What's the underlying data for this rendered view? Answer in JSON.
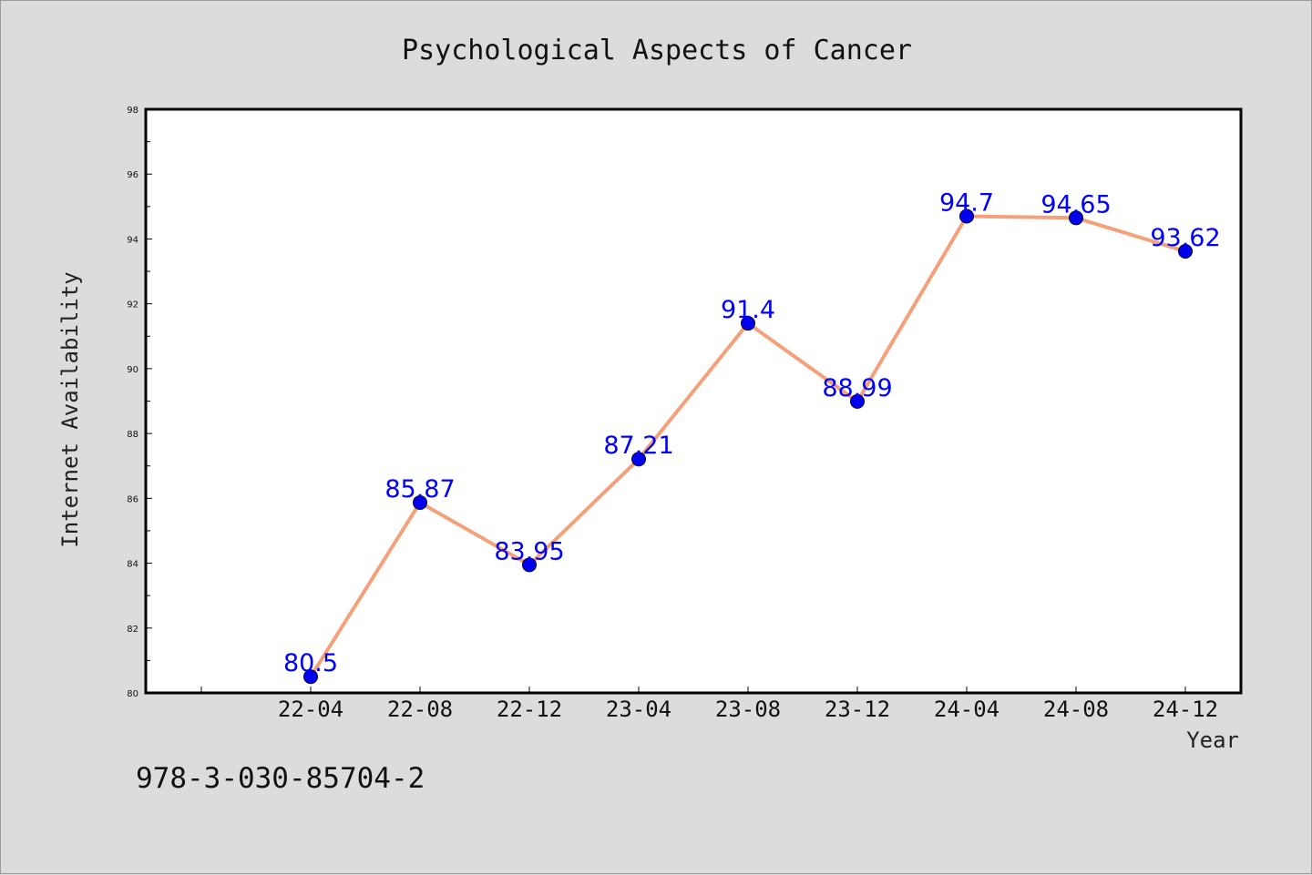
{
  "page": {
    "footnote": "978-3-030-85704-2"
  },
  "chart_data": {
    "type": "line",
    "title": "Psychological Aspects of Cancer",
    "xlabel": "Year",
    "ylabel": "Internet Availability",
    "categories": [
      "22-04",
      "22-08",
      "22-12",
      "23-04",
      "23-08",
      "23-12",
      "24-04",
      "24-08",
      "24-12"
    ],
    "series": [
      {
        "values": [
          80.5,
          85.87,
          83.95,
          87.21,
          91.4,
          88.99,
          94.7,
          94.65,
          93.62
        ],
        "labels": [
          "80.5",
          "85.87",
          "83.95",
          "87.21",
          "91.4",
          "88.99",
          "94.7",
          "94.65",
          "93.62"
        ],
        "line_color": "#f4a07a",
        "marker_color": "#0000ee"
      }
    ],
    "ylim": [
      80,
      98
    ],
    "yticks": [
      80,
      82,
      84,
      86,
      88,
      90,
      92,
      94,
      96,
      98
    ],
    "grid": false,
    "legend": "none",
    "background": "#dcdcdc",
    "plot_background": "#ffffff",
    "label_color": "#0000ff"
  }
}
